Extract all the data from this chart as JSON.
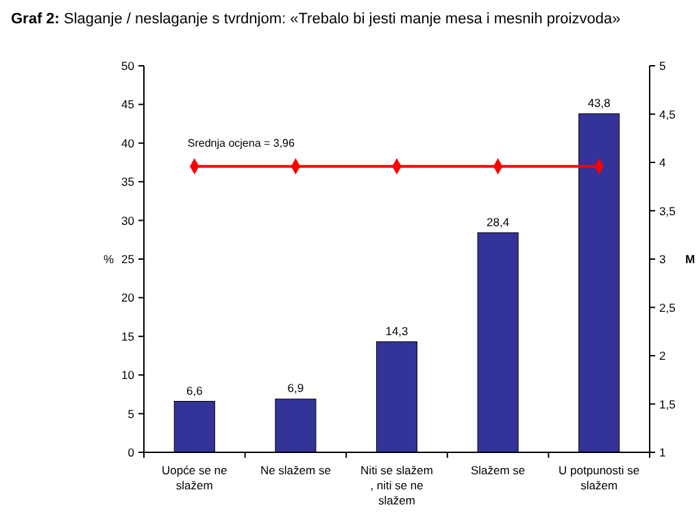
{
  "chart_data": {
    "type": "bar",
    "title": "Graf 2: Slaganje / neslaganje s tvrdnjom: «Trebalo bi jesti manje mesa i mesnih proizvoda»",
    "ylabel": "%",
    "y2label": "M",
    "annotations": [
      "Srednja ocjena = 3,96"
    ],
    "categories": [
      "Uopće se ne slažem",
      "Ne slažem se",
      "Niti se slažem , niti se ne slažem",
      "Slažem se",
      "U potpunosti se slažem"
    ],
    "series": [
      {
        "color": "#333399",
        "values": [
          6.6,
          6.9,
          14.3,
          28.4,
          43.8
        ],
        "value_labels": [
          "6,6",
          "6,9",
          "14,3",
          "28,4",
          "43,8"
        ]
      },
      {
        "type": "line",
        "axis": "y2",
        "color": "#ff0000",
        "values": [
          3.96,
          3.96,
          3.96,
          3.96,
          3.96
        ],
        "marker": "diamond",
        "line_style": "solid"
      }
    ],
    "ylim": [
      0,
      50
    ],
    "yticks": [
      0,
      5,
      10,
      15,
      20,
      25,
      30,
      35,
      40,
      45,
      50
    ],
    "y2lim": [
      1,
      5
    ],
    "y2ticks": [
      1,
      {
        "value": 1.5,
        "label": "1,5"
      },
      2,
      {
        "value": 2.5,
        "label": "2,5"
      },
      3,
      {
        "value": 3.5,
        "label": "3,5"
      },
      4,
      {
        "value": 4.5,
        "label": "4,5"
      },
      5
    ],
    "grid": false
  }
}
